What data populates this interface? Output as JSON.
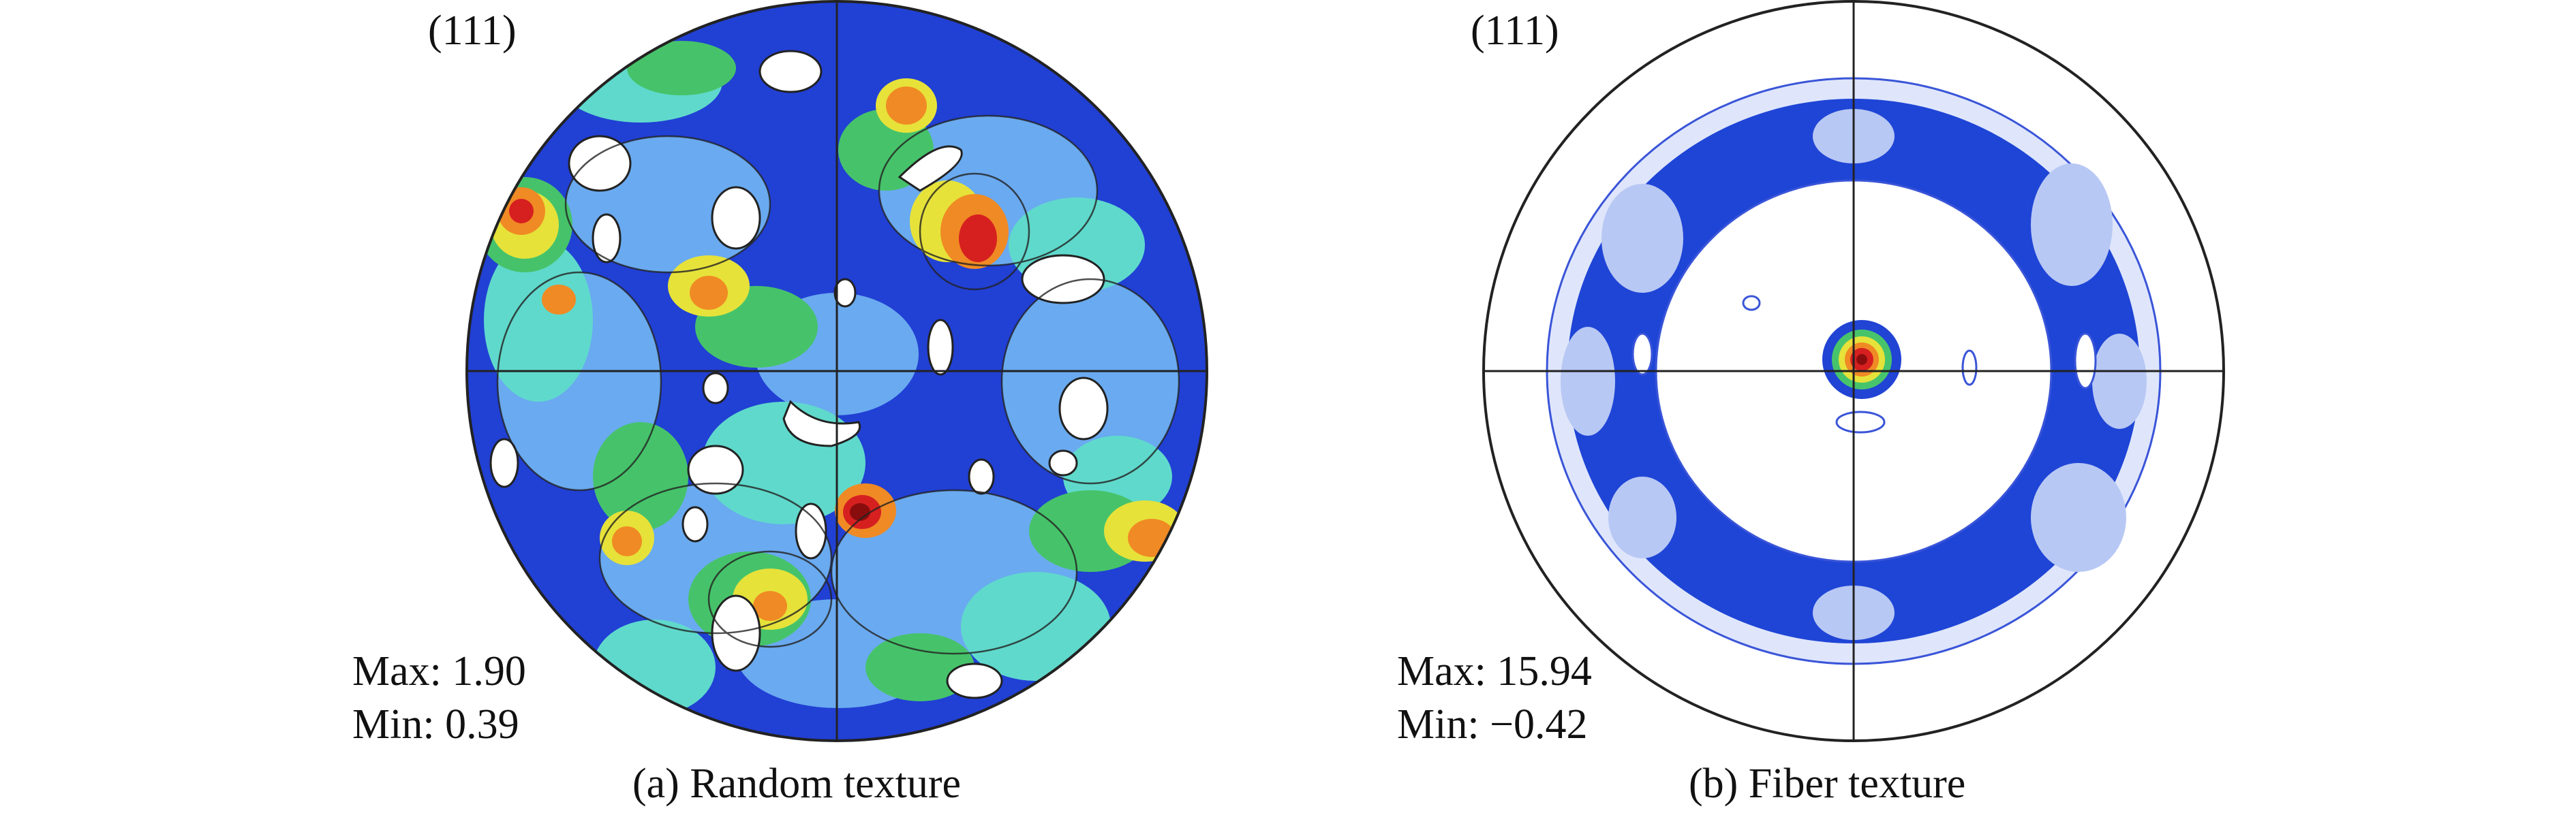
{
  "panels": [
    {
      "plane": "(111)",
      "max_label": "Max: 1.90",
      "min_label": "Min: 0.39",
      "caption": "(a) Random texture"
    },
    {
      "plane": "(111)",
      "max_label": "Max: 15.94",
      "min_label": "Min: −0.42",
      "caption": "(b) Fiber texture"
    }
  ],
  "colors": {
    "background": "#ffffff",
    "outline": "#222222",
    "contour_blue": "#1f3fd0",
    "contour_lightblue": "#7fb2f0",
    "contour_cyan": "#66d9d0",
    "contour_green": "#47c46b",
    "contour_yellow": "#e3e33b",
    "contour_orange": "#f08a24",
    "contour_red": "#d62020",
    "contour_darkred": "#8a0d0d"
  }
}
